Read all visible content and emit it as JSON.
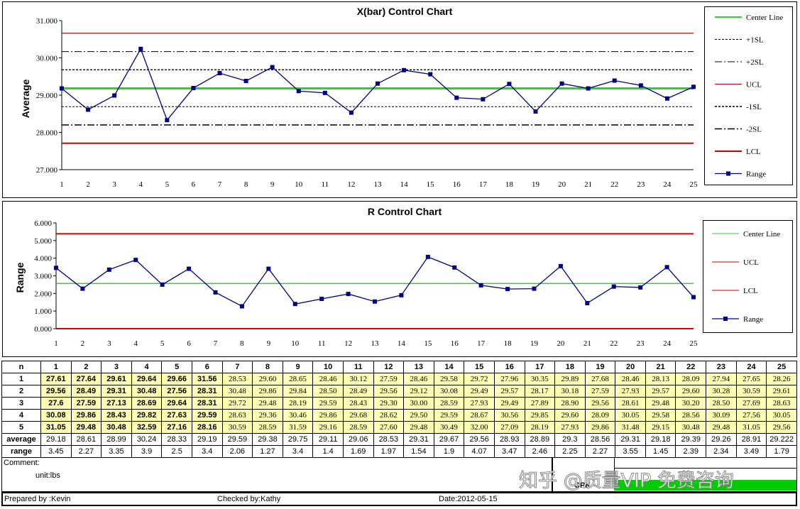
{
  "chart_data": [
    {
      "type": "line",
      "title": "X(bar) Control Chart",
      "ylabel": "Average",
      "ylim": [
        27.0,
        31.0
      ],
      "yticks": [
        "27.000",
        "28.000",
        "29.000",
        "30.000",
        "31.000"
      ],
      "x": [
        "1",
        "2",
        "3",
        "4",
        "5",
        "6",
        "7",
        "8",
        "9",
        "10",
        "11",
        "12",
        "13",
        "14",
        "15",
        "16",
        "17",
        "18",
        "19",
        "20",
        "21",
        "22",
        "23",
        "24",
        "25"
      ],
      "series": [
        {
          "name": "Range",
          "values": [
            29.18,
            28.61,
            28.99,
            30.24,
            28.33,
            29.19,
            29.59,
            29.38,
            29.75,
            29.11,
            29.06,
            28.53,
            29.31,
            29.67,
            29.56,
            28.93,
            28.89,
            29.3,
            28.56,
            29.31,
            29.18,
            29.39,
            29.26,
            28.91,
            29.222
          ]
        }
      ],
      "lines": {
        "center": 29.18,
        "plus1sl": 29.68,
        "plus2sl": 30.17,
        "ucl": 30.66,
        "minus1sl": 28.69,
        "minus2sl": 28.2,
        "lcl": 27.71
      },
      "legend": [
        "Center Line",
        "+1SL",
        "+2SL",
        "UCL",
        "-1SL",
        "-2SL",
        "LCL",
        "Range"
      ]
    },
    {
      "type": "line",
      "title": "R Control Chart",
      "ylabel": "Range",
      "ylim": [
        0,
        6.0
      ],
      "yticks": [
        "0.000",
        "1.000",
        "2.000",
        "3.000",
        "4.000",
        "5.000",
        "6.000"
      ],
      "x": [
        "1",
        "2",
        "3",
        "4",
        "5",
        "6",
        "7",
        "8",
        "9",
        "10",
        "11",
        "12",
        "13",
        "14",
        "15",
        "16",
        "17",
        "18",
        "19",
        "20",
        "21",
        "22",
        "23",
        "24",
        "25"
      ],
      "series": [
        {
          "name": "Range",
          "values": [
            3.45,
            2.27,
            3.35,
            3.9,
            2.5,
            3.4,
            2.06,
            1.27,
            3.4,
            1.4,
            1.69,
            1.97,
            1.54,
            1.9,
            4.07,
            3.47,
            2.46,
            2.25,
            2.27,
            3.55,
            1.45,
            2.39,
            2.34,
            3.49,
            1.79
          ]
        }
      ],
      "lines": {
        "center": 2.56,
        "ucl": 5.38,
        "lcl": 0
      },
      "legend": [
        "Center Line",
        "UCL",
        "LCL",
        "Range"
      ]
    }
  ],
  "table": {
    "header_label": "n",
    "columns": [
      "1",
      "2",
      "3",
      "4",
      "5",
      "6",
      "7",
      "8",
      "9",
      "10",
      "11",
      "12",
      "13",
      "14",
      "15",
      "16",
      "17",
      "18",
      "19",
      "20",
      "21",
      "22",
      "23",
      "24",
      "25"
    ],
    "rows": [
      {
        "label": "1",
        "values": [
          "27.61",
          "27.64",
          "29.61",
          "29.64",
          "29.66",
          "31.56",
          "28.53",
          "29.60",
          "28.65",
          "28.46",
          "30.12",
          "27.59",
          "28.46",
          "29.58",
          "29.72",
          "27.96",
          "30.35",
          "29.89",
          "27.68",
          "28.46",
          "28.13",
          "28.09",
          "27.94",
          "27.65",
          "28.26"
        ]
      },
      {
        "label": "2",
        "values": [
          "29.56",
          "28.49",
          "29.31",
          "30.48",
          "27.56",
          "28.31",
          "30.48",
          "29.86",
          "29.84",
          "28.50",
          "28.49",
          "29.56",
          "29.12",
          "30.08",
          "29.49",
          "29.57",
          "28.17",
          "30.18",
          "27.59",
          "27.93",
          "29.57",
          "29.60",
          "30.28",
          "30.59",
          "29.61"
        ]
      },
      {
        "label": "3",
        "values": [
          "27.6",
          "27.59",
          "27.13",
          "28.69",
          "29.64",
          "28.31",
          "29.72",
          "29.48",
          "28.19",
          "29.59",
          "28.43",
          "29.30",
          "30.00",
          "28.59",
          "27.93",
          "29.49",
          "27.89",
          "28.90",
          "29.56",
          "28.61",
          "29.48",
          "30.20",
          "28.50",
          "27.69",
          "28.63"
        ]
      },
      {
        "label": "4",
        "values": [
          "30.08",
          "29.86",
          "28.43",
          "29.82",
          "27.63",
          "29.59",
          "28.63",
          "29.36",
          "30.46",
          "29.86",
          "29.68",
          "28.62",
          "29.50",
          "29.59",
          "28.67",
          "30.56",
          "29.85",
          "29.60",
          "28.09",
          "30.05",
          "29.58",
          "28.56",
          "30.09",
          "27.56",
          "30.05"
        ]
      },
      {
        "label": "5",
        "values": [
          "31.05",
          "29.48",
          "30.48",
          "32.59",
          "27.16",
          "28.16",
          "30.59",
          "28.59",
          "31.59",
          "29.16",
          "28.59",
          "27.60",
          "29.48",
          "30.49",
          "32.00",
          "27.09",
          "28.19",
          "27.93",
          "29.86",
          "31.48",
          "29.15",
          "30.48",
          "29.48",
          "31.05",
          "29.56"
        ]
      }
    ],
    "average_label": "average",
    "average": [
      "29.18",
      "28.61",
      "28.99",
      "30.24",
      "28.33",
      "29.19",
      "29.59",
      "29.38",
      "29.75",
      "29.11",
      "29.06",
      "28.53",
      "29.31",
      "29.67",
      "29.56",
      "28.93",
      "28.89",
      "29.3",
      "28.56",
      "29.31",
      "29.18",
      "29.39",
      "29.26",
      "28.91",
      "29.222"
    ],
    "range_label": "range",
    "range": [
      "3.45",
      "2.27",
      "3.35",
      "3.9",
      "2.5",
      "3.4",
      "2.06",
      "1.27",
      "3.4",
      "1.4",
      "1.69",
      "1.97",
      "1.54",
      "1.9",
      "4.07",
      "3.47",
      "2.46",
      "2.25",
      "2.27",
      "3.55",
      "1.45",
      "2.39",
      "2.34",
      "3.49",
      "1.79"
    ]
  },
  "footer": {
    "comment_label": "Comment:",
    "unit": "unit:lbs",
    "cpk_label": "CPK",
    "watermark": "知乎 @质量VIP 免费咨询",
    "prepared_by": "Prepared by :Kevin",
    "checked_by": "Checked by:Kathy",
    "date": "Date:2012-05-15"
  },
  "colors": {
    "center": "#33cc33",
    "limit": "#cc0000",
    "series": "#000080",
    "cell_yellow": "#ffffb3",
    "cpk_green": "#00cc00"
  }
}
